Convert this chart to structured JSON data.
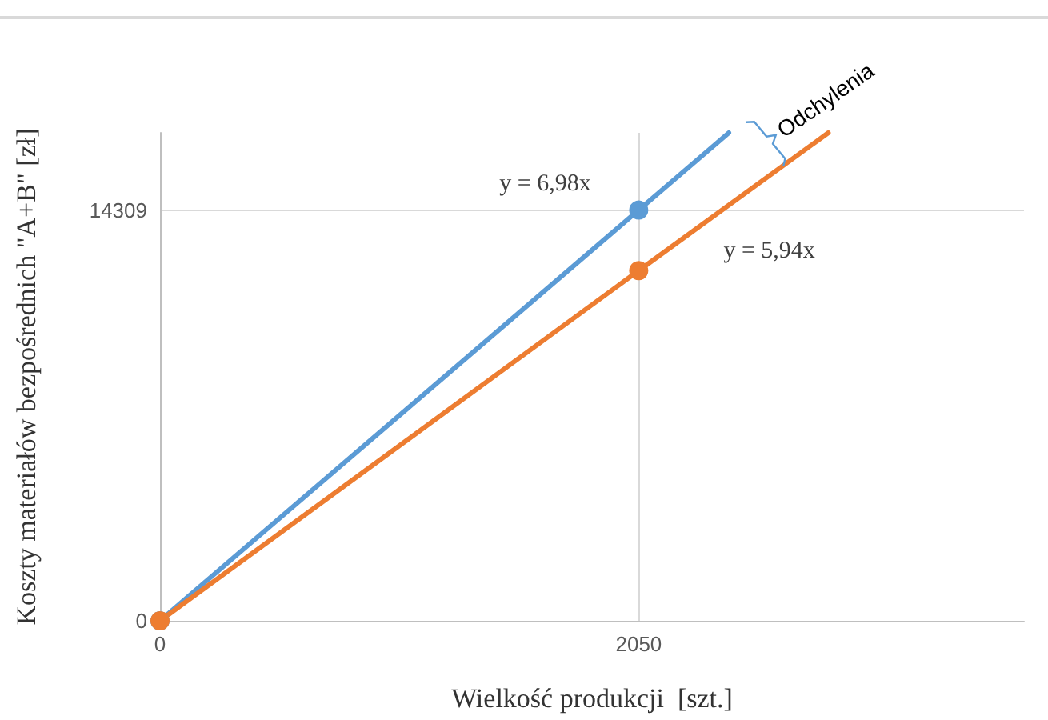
{
  "chart_data": {
    "type": "line",
    "xlabel": "Wielkość produkcji  [szt.]",
    "ylabel": "Koszty materiałów bezpośrednich \"A+B\" [zł]",
    "xlim": [
      0,
      3700
    ],
    "xticks": [
      0,
      2050
    ],
    "ylim": [
      0,
      17000
    ],
    "yticks": [
      0,
      14309
    ],
    "grid": true,
    "marker": "none",
    "line_style": "solid",
    "series": [
      {
        "color": "#5b9bd5",
        "x": [
          0,
          2050,
          2436
        ],
        "values": [
          0,
          14309,
          17000
        ]
      },
      {
        "color": "#ed7d31",
        "x": [
          0,
          2050,
          2862
        ],
        "values": [
          0,
          12200,
          17000
        ]
      },
      {
        "type": "scatter",
        "marker": "circle",
        "color": "#5b9bd5",
        "x": [
          0,
          2050
        ],
        "values": [
          0,
          14309
        ]
      },
      {
        "type": "scatter",
        "marker": "circle",
        "color": "#ed7d31",
        "x": [
          0,
          2050
        ],
        "values": [
          0,
          12200
        ]
      }
    ],
    "annotations": [
      "y = 6,98x",
      "y = 5,94x",
      {
        "text": "Odchylenia",
        "x": 2590,
        "y": 16600
      }
    ]
  }
}
